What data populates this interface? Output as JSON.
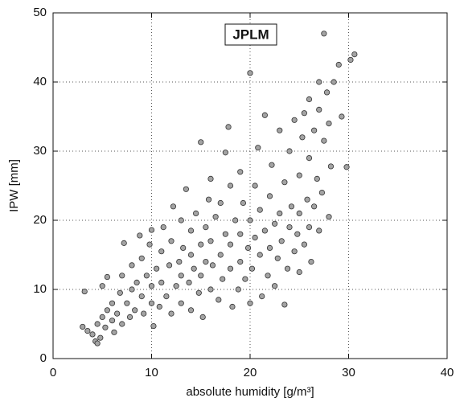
{
  "chart_data": {
    "type": "scatter",
    "title": "JPLM",
    "x_label": "absolute humidity [g/m³]",
    "y_label": "IPW [mm]",
    "color": "#a3a3a3",
    "x": [
      3,
      3.2,
      3.5,
      4,
      4.3,
      4.5,
      4.5,
      4.8,
      5,
      5,
      5.3,
      5.5,
      5.5,
      6,
      6,
      6.2,
      6.5,
      6.8,
      7,
      7,
      7.2,
      7.5,
      7.8,
      8,
      8,
      8.3,
      8.5,
      8.8,
      9,
      9,
      9.2,
      9.5,
      9.8,
      10,
      10,
      10,
      10.2,
      10.5,
      10.8,
      11,
      11,
      11.2,
      11.5,
      11.8,
      12,
      12,
      12.2,
      12.5,
      12.8,
      13,
      13,
      13,
      13.2,
      13.5,
      13.8,
      14,
      14,
      14,
      14.3,
      14.5,
      14.8,
      15,
      15,
      15,
      15.2,
      15.5,
      15.5,
      15.8,
      16,
      16,
      16,
      16.2,
      16.5,
      16.8,
      17,
      17,
      17.2,
      17.5,
      17.5,
      17.8,
      18,
      18,
      18,
      18.2,
      18.5,
      18.8,
      19,
      19,
      19,
      19.3,
      19.5,
      19.8,
      20,
      20,
      20,
      20.2,
      20.5,
      20.5,
      20.8,
      21,
      21,
      21.2,
      21.5,
      21.5,
      21.8,
      22,
      22,
      22.2,
      22.5,
      22.5,
      22.8,
      23,
      23,
      23.2,
      23.5,
      23.5,
      23.8,
      24,
      24,
      24.2,
      24.5,
      24.5,
      24.8,
      25,
      25,
      25,
      25.3,
      25.5,
      25.5,
      25.8,
      26,
      26,
      26,
      26.2,
      26.5,
      26.5,
      26.8,
      27,
      27,
      27,
      27.3,
      27.5,
      27.5,
      27.8,
      28,
      28,
      28.2,
      28.5,
      29,
      29.3,
      29.8,
      30.2,
      30.6
    ],
    "values": [
      4.6,
      9.7,
      4,
      3.5,
      2.5,
      2.2,
      5,
      3,
      6,
      10.5,
      4.5,
      7,
      11.8,
      5.5,
      8,
      3.8,
      6.5,
      9.5,
      5,
      12,
      16.7,
      8,
      6,
      10,
      13.5,
      7,
      11,
      17.8,
      9,
      14.5,
      6.5,
      12,
      16.5,
      8,
      10.5,
      18.6,
      4.7,
      13,
      7.5,
      11,
      15.5,
      19,
      9,
      13.5,
      6.5,
      17,
      22,
      10.5,
      14,
      8,
      12,
      20,
      16,
      24.5,
      11,
      7,
      15,
      18.5,
      13,
      21,
      9.5,
      12,
      16.5,
      31.3,
      6,
      19,
      14,
      23,
      10,
      17,
      26,
      13.5,
      20.5,
      8.5,
      15,
      22.5,
      11.5,
      18,
      29.8,
      33.5,
      13,
      16.5,
      25,
      7.5,
      20,
      10,
      14,
      18,
      27,
      22.5,
      11.5,
      16,
      41.3,
      20,
      8,
      13,
      25,
      17.5,
      30.5,
      15,
      21.5,
      9,
      18.5,
      35.2,
      12,
      23.5,
      16,
      28,
      19.5,
      10.5,
      14.5,
      21,
      33,
      17,
      7.8,
      25.5,
      13,
      19,
      30,
      22,
      15.5,
      34.5,
      18,
      12.5,
      26.5,
      21,
      32,
      16.5,
      35.5,
      23,
      19,
      29,
      37.5,
      14,
      22,
      33,
      26,
      40,
      36,
      18.5,
      24,
      47,
      31.5,
      38.5,
      34,
      20.5,
      27.8,
      40,
      42.5,
      35,
      27.7,
      43.2,
      44
    ],
    "xlim": [
      0,
      40
    ],
    "ylim": [
      0,
      50
    ],
    "xticks": [
      0,
      10,
      20,
      30,
      40
    ],
    "yticks": [
      0,
      10,
      20,
      30,
      40,
      50
    ],
    "grid": true
  }
}
